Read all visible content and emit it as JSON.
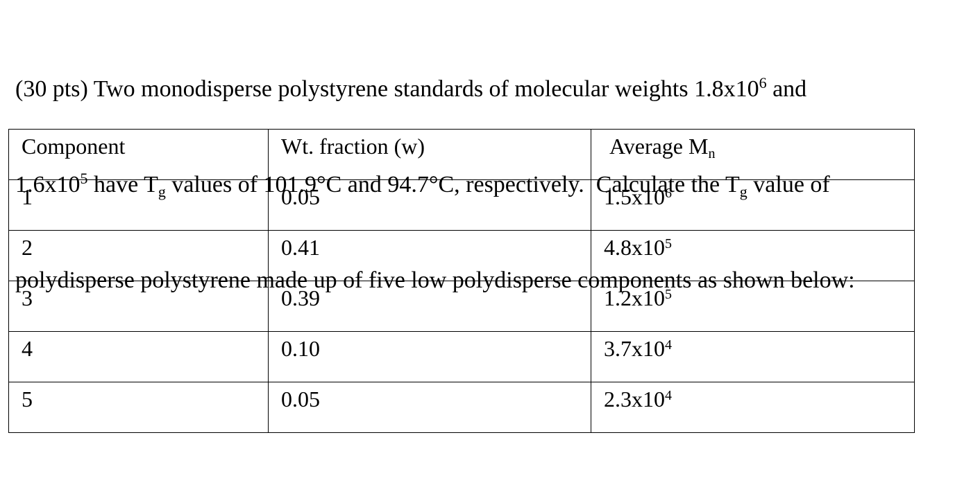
{
  "problem": {
    "lines": [
      [
        "(30 pts) Two monodisperse polystyrene standards of molecular weights 1.8x10",
        "6",
        " and"
      ],
      [
        "1.6x10",
        "5",
        " have T",
        "g",
        " values of 101.9°C and 94.7°C, respectively.  Calculate the T",
        "g",
        " value of"
      ],
      [
        "polydisperse polystyrene made up of five low polydisperse components as shown below:"
      ]
    ]
  },
  "table": {
    "header": [
      "Component",
      "Wt. fraction (w)",
      {
        "text": "Average M",
        "sub": "n"
      }
    ],
    "rows": [
      [
        "1",
        "0.05",
        {
          "base": "1.5x10",
          "exp": "6"
        }
      ],
      [
        "2",
        "0.41",
        {
          "base": "4.8x10",
          "exp": "5"
        }
      ],
      [
        "3",
        "0.39",
        {
          "base": "1.2x10",
          "exp": "5"
        }
      ],
      [
        "4",
        "0.10",
        {
          "base": "3.7x10",
          "exp": "4"
        }
      ],
      [
        "5",
        "0.05",
        {
          "base": "2.3x10",
          "exp": "4"
        }
      ]
    ]
  }
}
